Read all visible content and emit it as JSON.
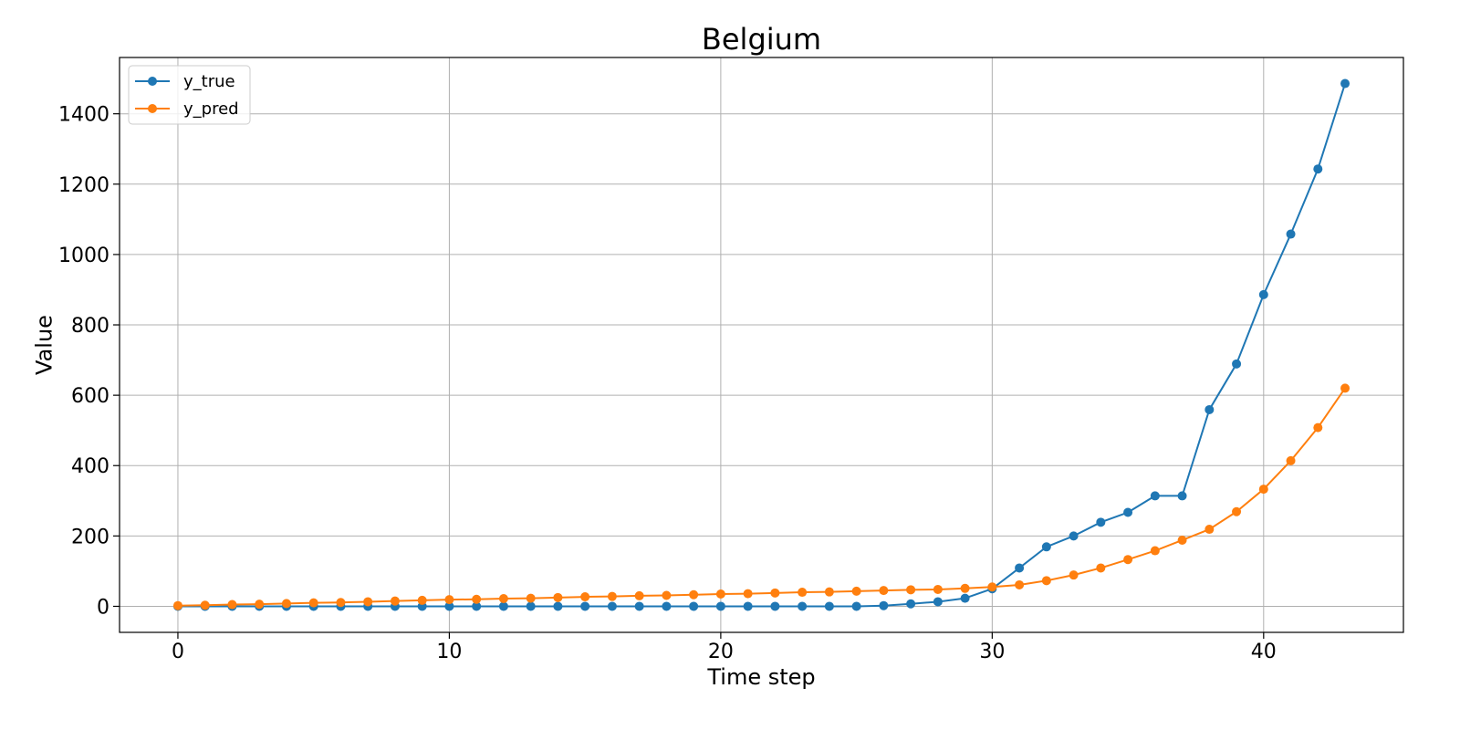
{
  "chart_data": {
    "type": "line",
    "title": "Belgium",
    "xlabel": "Time step",
    "ylabel": "Value",
    "xlim": [
      -2.15,
      45.15
    ],
    "ylim": [
      -74,
      1560
    ],
    "xticks": [
      0,
      10,
      20,
      30,
      40
    ],
    "yticks": [
      0,
      200,
      400,
      600,
      800,
      1000,
      1200,
      1400
    ],
    "grid": true,
    "legend_position": "upper left",
    "x": [
      0,
      1,
      2,
      3,
      4,
      5,
      6,
      7,
      8,
      9,
      10,
      11,
      12,
      13,
      14,
      15,
      16,
      17,
      18,
      19,
      20,
      21,
      22,
      23,
      24,
      25,
      26,
      27,
      28,
      29,
      30,
      31,
      32,
      33,
      34,
      35,
      36,
      37,
      38,
      39,
      40,
      41,
      42,
      43
    ],
    "series": [
      {
        "name": "y_true",
        "color": "#1f77b4",
        "values": [
          0,
          0,
          0,
          0,
          0,
          0,
          0,
          0,
          0,
          0,
          0,
          0,
          0,
          0,
          0,
          0,
          0,
          0,
          0,
          0,
          0,
          0,
          0,
          0,
          0,
          0,
          2,
          7,
          13,
          23,
          50,
          109,
          169,
          200,
          239,
          267,
          314,
          314,
          559,
          689,
          886,
          1058,
          1243,
          1486
        ]
      },
      {
        "name": "y_pred",
        "color": "#ff7f0e",
        "values": [
          2,
          3,
          5,
          6,
          8,
          10,
          11,
          13,
          15,
          17,
          19,
          20,
          22,
          23,
          25,
          27,
          28,
          30,
          31,
          33,
          35,
          36,
          38,
          40,
          41,
          43,
          45,
          47,
          48,
          51,
          55,
          61,
          73,
          89,
          109,
          133,
          158,
          188,
          219,
          269,
          333,
          414,
          508,
          620
        ]
      }
    ]
  }
}
